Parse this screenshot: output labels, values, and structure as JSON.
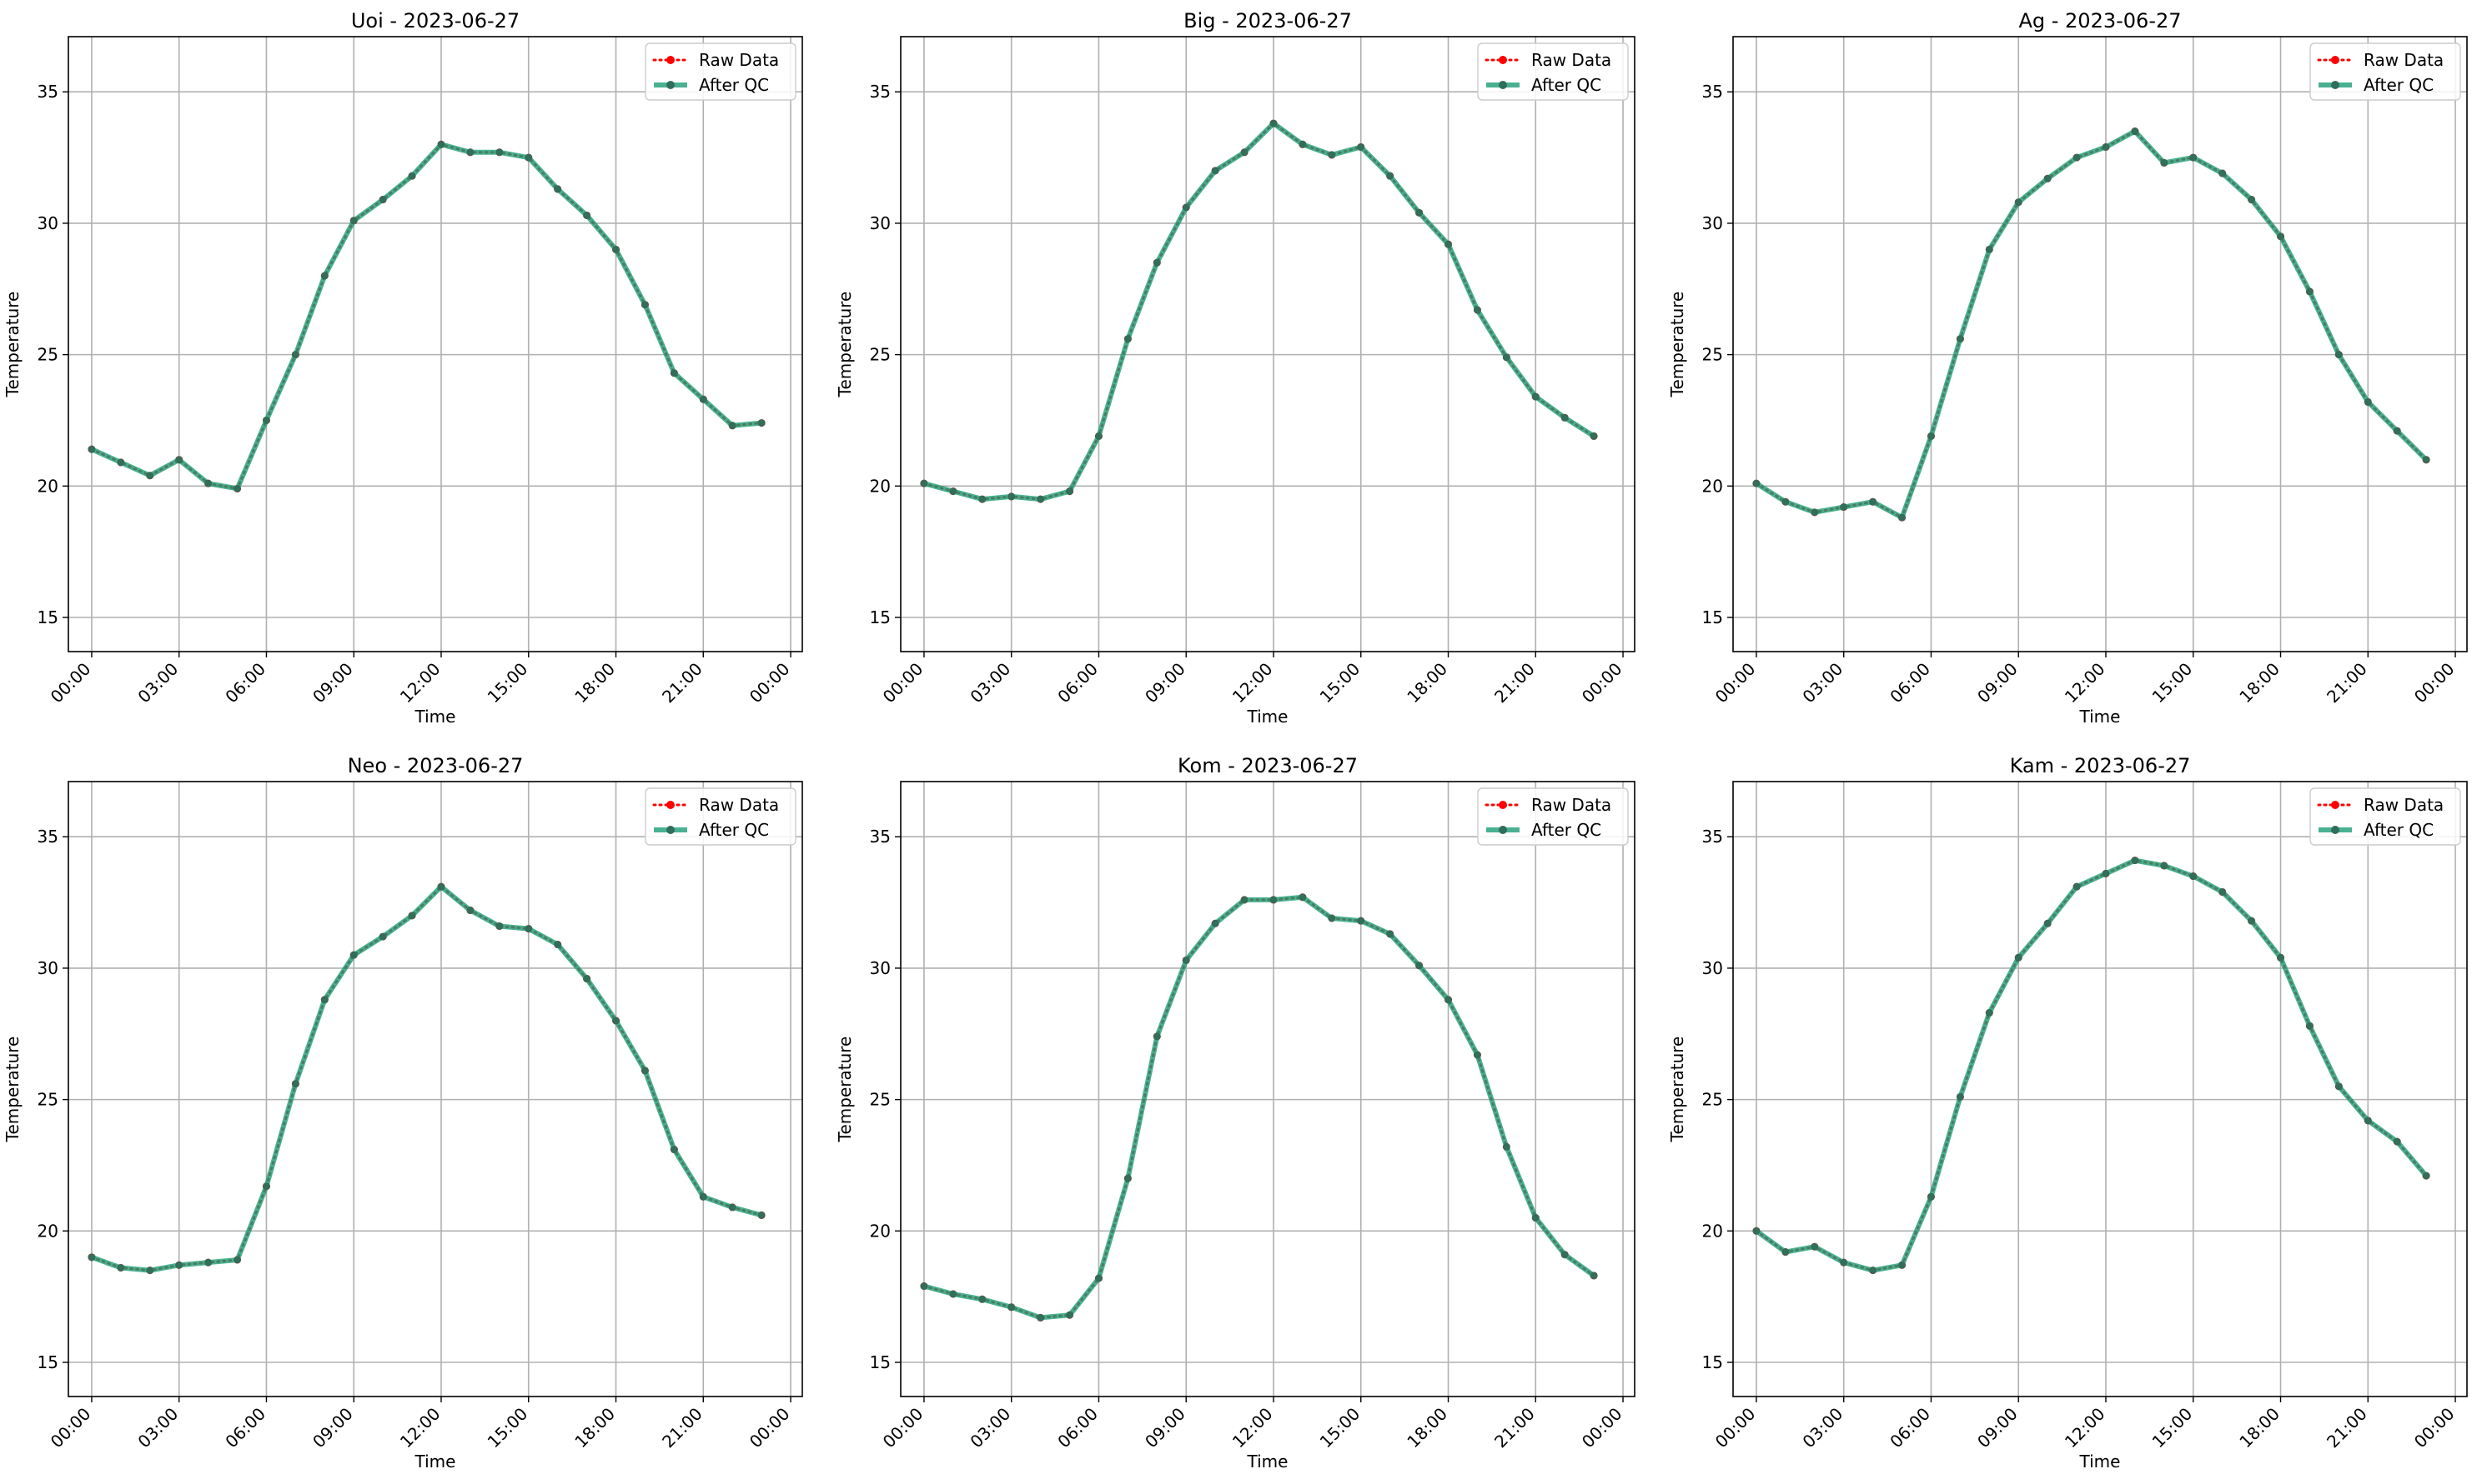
{
  "chart_data": [
    {
      "type": "line",
      "title": "Uoi - 2023-06-27",
      "xlabel": "Time",
      "ylabel": "Temperature",
      "x": [
        "00:00",
        "01:00",
        "02:00",
        "03:00",
        "04:00",
        "05:00",
        "06:00",
        "07:00",
        "08:00",
        "09:00",
        "10:00",
        "11:00",
        "12:00",
        "13:00",
        "14:00",
        "15:00",
        "16:00",
        "17:00",
        "18:00",
        "19:00",
        "20:00",
        "21:00",
        "22:00",
        "23:00"
      ],
      "xticks": [
        "00:00",
        "03:00",
        "06:00",
        "09:00",
        "12:00",
        "15:00",
        "18:00",
        "21:00",
        "00:00"
      ],
      "yticks": [
        15,
        20,
        25,
        30,
        35
      ],
      "ylim": [
        13.7,
        37.1
      ],
      "grid": true,
      "legend": "top-right",
      "series": [
        {
          "name": "Raw Data",
          "color": "#ff0000",
          "values": [
            21.4,
            20.9,
            20.4,
            21.0,
            20.1,
            19.9,
            22.5,
            25.0,
            28.0,
            30.1,
            30.9,
            31.8,
            33.0,
            32.7,
            32.7,
            32.5,
            31.3,
            30.3,
            29.0,
            26.9,
            24.3,
            23.3,
            22.3,
            22.4
          ]
        },
        {
          "name": "After QC",
          "color": "#1b9e77",
          "values": [
            21.4,
            20.9,
            20.4,
            21.0,
            20.1,
            19.9,
            22.5,
            25.0,
            28.0,
            30.1,
            30.9,
            31.8,
            33.0,
            32.7,
            32.7,
            32.5,
            31.3,
            30.3,
            29.0,
            26.9,
            24.3,
            23.3,
            22.3,
            22.4
          ]
        }
      ]
    },
    {
      "type": "line",
      "title": "Big - 2023-06-27",
      "xlabel": "Time",
      "ylabel": "Temperature",
      "x": [
        "00:00",
        "01:00",
        "02:00",
        "03:00",
        "04:00",
        "05:00",
        "06:00",
        "07:00",
        "08:00",
        "09:00",
        "10:00",
        "11:00",
        "12:00",
        "13:00",
        "14:00",
        "15:00",
        "16:00",
        "17:00",
        "18:00",
        "19:00",
        "20:00",
        "21:00",
        "22:00",
        "23:00"
      ],
      "xticks": [
        "00:00",
        "03:00",
        "06:00",
        "09:00",
        "12:00",
        "15:00",
        "18:00",
        "21:00",
        "00:00"
      ],
      "yticks": [
        15,
        20,
        25,
        30,
        35
      ],
      "ylim": [
        13.7,
        37.1
      ],
      "grid": true,
      "legend": "top-right",
      "series": [
        {
          "name": "Raw Data",
          "color": "#ff0000",
          "values": [
            20.1,
            19.8,
            19.5,
            19.6,
            19.5,
            19.8,
            21.9,
            25.6,
            28.5,
            30.6,
            32.0,
            32.7,
            33.8,
            33.0,
            32.6,
            32.9,
            31.8,
            30.4,
            29.2,
            26.7,
            24.9,
            23.4,
            22.6,
            21.9
          ]
        },
        {
          "name": "After QC",
          "color": "#1b9e77",
          "values": [
            20.1,
            19.8,
            19.5,
            19.6,
            19.5,
            19.8,
            21.9,
            25.6,
            28.5,
            30.6,
            32.0,
            32.7,
            33.8,
            33.0,
            32.6,
            32.9,
            31.8,
            30.4,
            29.2,
            26.7,
            24.9,
            23.4,
            22.6,
            21.9
          ]
        }
      ]
    },
    {
      "type": "line",
      "title": "Ag - 2023-06-27",
      "xlabel": "Time",
      "ylabel": "Temperature",
      "x": [
        "00:00",
        "01:00",
        "02:00",
        "03:00",
        "04:00",
        "05:00",
        "06:00",
        "07:00",
        "08:00",
        "09:00",
        "10:00",
        "11:00",
        "12:00",
        "13:00",
        "14:00",
        "15:00",
        "16:00",
        "17:00",
        "18:00",
        "19:00",
        "20:00",
        "21:00",
        "22:00",
        "23:00"
      ],
      "xticks": [
        "00:00",
        "03:00",
        "06:00",
        "09:00",
        "12:00",
        "15:00",
        "18:00",
        "21:00",
        "00:00"
      ],
      "yticks": [
        15,
        20,
        25,
        30,
        35
      ],
      "ylim": [
        13.7,
        37.1
      ],
      "grid": true,
      "legend": "top-right",
      "series": [
        {
          "name": "Raw Data",
          "color": "#ff0000",
          "values": [
            20.1,
            19.4,
            19.0,
            19.2,
            19.4,
            18.8,
            21.9,
            25.6,
            29.0,
            30.8,
            31.7,
            32.5,
            32.9,
            33.5,
            32.3,
            32.5,
            31.9,
            30.9,
            29.5,
            27.4,
            25.0,
            23.2,
            22.1,
            21.0
          ]
        },
        {
          "name": "After QC",
          "color": "#1b9e77",
          "values": [
            20.1,
            19.4,
            19.0,
            19.2,
            19.4,
            18.8,
            21.9,
            25.6,
            29.0,
            30.8,
            31.7,
            32.5,
            32.9,
            33.5,
            32.3,
            32.5,
            31.9,
            30.9,
            29.5,
            27.4,
            25.0,
            23.2,
            22.1,
            21.0
          ]
        }
      ]
    },
    {
      "type": "line",
      "title": "Neo - 2023-06-27",
      "xlabel": "Time",
      "ylabel": "Temperature",
      "x": [
        "00:00",
        "01:00",
        "02:00",
        "03:00",
        "04:00",
        "05:00",
        "06:00",
        "07:00",
        "08:00",
        "09:00",
        "10:00",
        "11:00",
        "12:00",
        "13:00",
        "14:00",
        "15:00",
        "16:00",
        "17:00",
        "18:00",
        "19:00",
        "20:00",
        "21:00",
        "22:00",
        "23:00"
      ],
      "xticks": [
        "00:00",
        "03:00",
        "06:00",
        "09:00",
        "12:00",
        "15:00",
        "18:00",
        "21:00",
        "00:00"
      ],
      "yticks": [
        15,
        20,
        25,
        30,
        35
      ],
      "ylim": [
        13.7,
        37.1
      ],
      "grid": true,
      "legend": "top-right",
      "series": [
        {
          "name": "Raw Data",
          "color": "#ff0000",
          "values": [
            19.0,
            18.6,
            18.5,
            18.7,
            18.8,
            18.9,
            21.7,
            25.6,
            28.8,
            30.5,
            31.2,
            32.0,
            33.1,
            32.2,
            31.6,
            31.5,
            30.9,
            29.6,
            28.0,
            26.1,
            23.1,
            21.3,
            20.9,
            20.6
          ]
        },
        {
          "name": "After QC",
          "color": "#1b9e77",
          "values": [
            19.0,
            18.6,
            18.5,
            18.7,
            18.8,
            18.9,
            21.7,
            25.6,
            28.8,
            30.5,
            31.2,
            32.0,
            33.1,
            32.2,
            31.6,
            31.5,
            30.9,
            29.6,
            28.0,
            26.1,
            23.1,
            21.3,
            20.9,
            20.6
          ]
        }
      ]
    },
    {
      "type": "line",
      "title": "Kom - 2023-06-27",
      "xlabel": "Time",
      "ylabel": "Temperature",
      "x": [
        "00:00",
        "01:00",
        "02:00",
        "03:00",
        "04:00",
        "05:00",
        "06:00",
        "07:00",
        "08:00",
        "09:00",
        "10:00",
        "11:00",
        "12:00",
        "13:00",
        "14:00",
        "15:00",
        "16:00",
        "17:00",
        "18:00",
        "19:00",
        "20:00",
        "21:00",
        "22:00",
        "23:00"
      ],
      "xticks": [
        "00:00",
        "03:00",
        "06:00",
        "09:00",
        "12:00",
        "15:00",
        "18:00",
        "21:00",
        "00:00"
      ],
      "yticks": [
        15,
        20,
        25,
        30,
        35
      ],
      "ylim": [
        13.7,
        37.1
      ],
      "grid": true,
      "legend": "top-right",
      "series": [
        {
          "name": "Raw Data",
          "color": "#ff0000",
          "values": [
            17.9,
            17.6,
            17.4,
            17.1,
            16.7,
            16.8,
            18.2,
            22.0,
            27.4,
            30.3,
            31.7,
            32.6,
            32.6,
            32.7,
            31.9,
            31.8,
            31.3,
            30.1,
            28.8,
            26.7,
            23.2,
            20.5,
            19.1,
            18.3
          ]
        },
        {
          "name": "After QC",
          "color": "#1b9e77",
          "values": [
            17.9,
            17.6,
            17.4,
            17.1,
            16.7,
            16.8,
            18.2,
            22.0,
            27.4,
            30.3,
            31.7,
            32.6,
            32.6,
            32.7,
            31.9,
            31.8,
            31.3,
            30.1,
            28.8,
            26.7,
            23.2,
            20.5,
            19.1,
            18.3
          ]
        }
      ]
    },
    {
      "type": "line",
      "title": "Kam - 2023-06-27",
      "xlabel": "Time",
      "ylabel": "Temperature",
      "x": [
        "00:00",
        "01:00",
        "02:00",
        "03:00",
        "04:00",
        "05:00",
        "06:00",
        "07:00",
        "08:00",
        "09:00",
        "10:00",
        "11:00",
        "12:00",
        "13:00",
        "14:00",
        "15:00",
        "16:00",
        "17:00",
        "18:00",
        "19:00",
        "20:00",
        "21:00",
        "22:00",
        "23:00"
      ],
      "xticks": [
        "00:00",
        "03:00",
        "06:00",
        "09:00",
        "12:00",
        "15:00",
        "18:00",
        "21:00",
        "00:00"
      ],
      "yticks": [
        15,
        20,
        25,
        30,
        35
      ],
      "ylim": [
        13.7,
        37.1
      ],
      "grid": true,
      "legend": "top-right",
      "series": [
        {
          "name": "Raw Data",
          "color": "#ff0000",
          "values": [
            20.0,
            19.2,
            19.4,
            18.8,
            18.5,
            18.7,
            21.3,
            25.1,
            28.3,
            30.4,
            31.7,
            33.1,
            33.6,
            34.1,
            33.9,
            33.5,
            32.9,
            31.8,
            30.4,
            27.8,
            25.5,
            24.2,
            23.4,
            22.1
          ]
        },
        {
          "name": "After QC",
          "color": "#1b9e77",
          "values": [
            20.0,
            19.2,
            19.4,
            18.8,
            18.5,
            18.7,
            21.3,
            25.1,
            28.3,
            30.4,
            31.7,
            33.1,
            33.6,
            34.1,
            33.9,
            33.5,
            32.9,
            31.8,
            30.4,
            27.8,
            25.5,
            24.2,
            23.4,
            22.1
          ]
        }
      ]
    }
  ]
}
